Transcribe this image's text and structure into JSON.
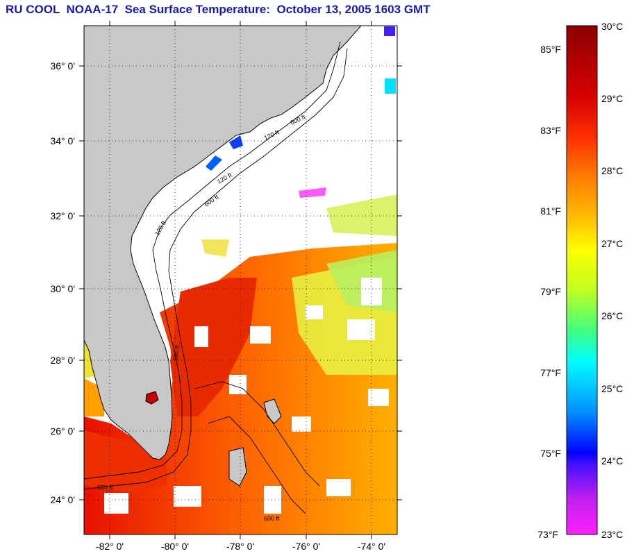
{
  "title": "RU COOL  NOAA-17  Sea Surface Temperature:  October 13, 2005 1603 GMT",
  "map": {
    "lat_labels": [
      "36° 0'",
      "34° 0'",
      "32° 0'",
      "30° 0'",
      "28° 0'",
      "26° 0'",
      "24° 0'"
    ],
    "lon_labels": [
      "-82° 0'",
      "-80° 0'",
      "-78° 0'",
      "-76° 0'",
      "-74° 0'"
    ],
    "isobath_labels": [
      "120 ft",
      "600 ft",
      "120 ft",
      "600 ft",
      "120 ft",
      "600 ft",
      "600 ft",
      "600 ft"
    ],
    "colors": {
      "land": "#c8c8c8",
      "cloud": "#ffffff",
      "coast": "#000000"
    }
  },
  "colorbar": {
    "fahrenheit_labels": [
      "85°F",
      "83°F",
      "81°F",
      "79°F",
      "77°F",
      "75°F",
      "73°F"
    ],
    "celsius_labels": [
      "30°C",
      "29°C",
      "28°C",
      "27°C",
      "26°C",
      "25°C",
      "24°C",
      "23°C"
    ],
    "stops": [
      "#8b0000",
      "#e00000",
      "#ff3000",
      "#ff8000",
      "#ffb000",
      "#ffff00",
      "#c0ff20",
      "#40ff80",
      "#00ffff",
      "#0090ff",
      "#0000ff",
      "#9020e0",
      "#ff20ff"
    ]
  }
}
